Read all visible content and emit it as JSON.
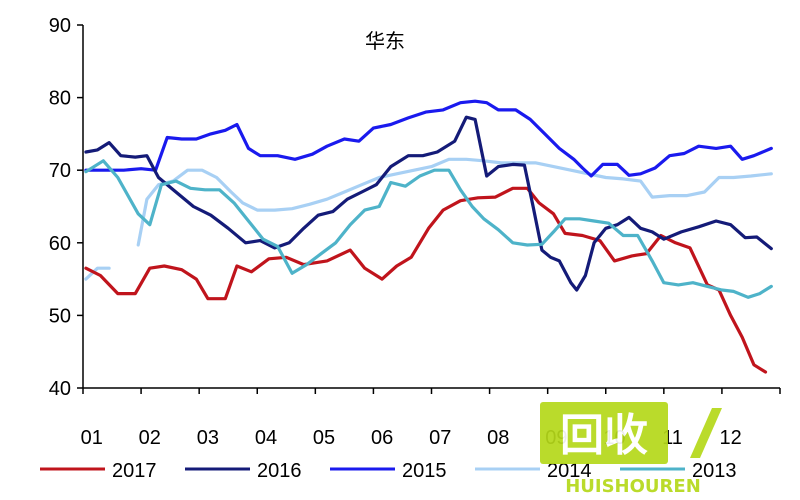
{
  "chart_data": {
    "type": "line",
    "title": "华东",
    "xlabel": "",
    "ylabel": "",
    "ylim": [
      40,
      90
    ],
    "xlim": [
      0,
      12
    ],
    "yticks": [
      40,
      50,
      60,
      70,
      80,
      90
    ],
    "categories": [
      "01",
      "02",
      "03",
      "04",
      "05",
      "06",
      "07",
      "08",
      "09",
      "10",
      "11",
      "12"
    ],
    "grid": false,
    "legend": "bottom",
    "series": [
      {
        "name": "2017",
        "color": "#c0141c",
        "points": [
          [
            0.05,
            56.5
          ],
          [
            0.3,
            55.5
          ],
          [
            0.6,
            53
          ],
          [
            0.9,
            53
          ],
          [
            1.15,
            56.5
          ],
          [
            1.4,
            56.8
          ],
          [
            1.7,
            56.3
          ],
          [
            1.95,
            55
          ],
          [
            2.15,
            52.3
          ],
          [
            2.45,
            52.3
          ],
          [
            2.65,
            56.8
          ],
          [
            2.9,
            56
          ],
          [
            3.2,
            57.8
          ],
          [
            3.5,
            58
          ],
          [
            3.8,
            57
          ],
          [
            4.2,
            57.5
          ],
          [
            4.6,
            59
          ],
          [
            4.85,
            56.5
          ],
          [
            5.15,
            55
          ],
          [
            5.4,
            56.8
          ],
          [
            5.65,
            58
          ],
          [
            5.95,
            62
          ],
          [
            6.2,
            64.5
          ],
          [
            6.5,
            65.8
          ],
          [
            6.8,
            66.2
          ],
          [
            7.1,
            66.3
          ],
          [
            7.4,
            67.5
          ],
          [
            7.65,
            67.5
          ],
          [
            7.85,
            65.5
          ],
          [
            8.1,
            64
          ],
          [
            8.3,
            61.3
          ],
          [
            8.6,
            61
          ],
          [
            8.9,
            60.3
          ],
          [
            9.15,
            57.5
          ],
          [
            9.45,
            58.2
          ],
          [
            9.7,
            58.5
          ],
          [
            9.95,
            61
          ],
          [
            10.2,
            60
          ],
          [
            10.45,
            59.3
          ],
          [
            10.75,
            54.2
          ],
          [
            10.95,
            53.5
          ],
          [
            11.15,
            50
          ],
          [
            11.35,
            47
          ],
          [
            11.55,
            43.2
          ],
          [
            11.75,
            42.2
          ]
        ]
      },
      {
        "name": "2016",
        "color": "#141b78",
        "points": [
          [
            0.05,
            72.5
          ],
          [
            0.25,
            72.8
          ],
          [
            0.45,
            73.8
          ],
          [
            0.65,
            72
          ],
          [
            0.9,
            71.8
          ],
          [
            1.1,
            72
          ],
          [
            1.3,
            69
          ],
          [
            1.6,
            67
          ],
          [
            1.9,
            65
          ],
          [
            2.2,
            63.8
          ],
          [
            2.5,
            62
          ],
          [
            2.8,
            60
          ],
          [
            3.05,
            60.3
          ],
          [
            3.3,
            59.3
          ],
          [
            3.55,
            60
          ],
          [
            3.8,
            62
          ],
          [
            4.05,
            63.8
          ],
          [
            4.3,
            64.3
          ],
          [
            4.55,
            66
          ],
          [
            4.8,
            67
          ],
          [
            5.05,
            68
          ],
          [
            5.3,
            70.5
          ],
          [
            5.6,
            72
          ],
          [
            5.85,
            72
          ],
          [
            6.1,
            72.5
          ],
          [
            6.4,
            74
          ],
          [
            6.6,
            77.3
          ],
          [
            6.75,
            77
          ],
          [
            6.95,
            69.2
          ],
          [
            7.15,
            70.5
          ],
          [
            7.4,
            70.8
          ],
          [
            7.6,
            70.7
          ],
          [
            7.75,
            65
          ],
          [
            7.9,
            59
          ],
          [
            8.05,
            58
          ],
          [
            8.2,
            57.5
          ],
          [
            8.4,
            54.5
          ],
          [
            8.5,
            53.5
          ],
          [
            8.65,
            55.5
          ],
          [
            8.8,
            60
          ],
          [
            9,
            62
          ],
          [
            9.2,
            62.5
          ],
          [
            9.4,
            63.5
          ],
          [
            9.6,
            62
          ],
          [
            9.8,
            61.5
          ],
          [
            10,
            60.5
          ],
          [
            10.3,
            61.5
          ],
          [
            10.6,
            62.2
          ],
          [
            10.9,
            63
          ],
          [
            11.15,
            62.5
          ],
          [
            11.4,
            60.7
          ],
          [
            11.6,
            60.8
          ],
          [
            11.85,
            59.2
          ]
        ]
      },
      {
        "name": "2015",
        "color": "#1a1aee",
        "points": [
          [
            0.05,
            70
          ],
          [
            0.35,
            70
          ],
          [
            0.7,
            70
          ],
          [
            1,
            70.2
          ],
          [
            1.25,
            70
          ],
          [
            1.45,
            74.5
          ],
          [
            1.7,
            74.3
          ],
          [
            1.95,
            74.3
          ],
          [
            2.2,
            75
          ],
          [
            2.45,
            75.5
          ],
          [
            2.65,
            76.3
          ],
          [
            2.85,
            73
          ],
          [
            3.05,
            72
          ],
          [
            3.35,
            72
          ],
          [
            3.65,
            71.5
          ],
          [
            3.95,
            72.2
          ],
          [
            4.2,
            73.3
          ],
          [
            4.5,
            74.3
          ],
          [
            4.75,
            74
          ],
          [
            5,
            75.8
          ],
          [
            5.3,
            76.3
          ],
          [
            5.6,
            77.2
          ],
          [
            5.9,
            78
          ],
          [
            6.2,
            78.3
          ],
          [
            6.5,
            79.3
          ],
          [
            6.75,
            79.5
          ],
          [
            6.95,
            79.3
          ],
          [
            7.15,
            78.3
          ],
          [
            7.45,
            78.3
          ],
          [
            7.7,
            77
          ],
          [
            7.95,
            75
          ],
          [
            8.2,
            73
          ],
          [
            8.45,
            71.5
          ],
          [
            8.6,
            70.3
          ],
          [
            8.75,
            69.2
          ],
          [
            8.95,
            70.8
          ],
          [
            9.2,
            70.8
          ],
          [
            9.4,
            69.3
          ],
          [
            9.6,
            69.5
          ],
          [
            9.85,
            70.3
          ],
          [
            10.1,
            72
          ],
          [
            10.35,
            72.3
          ],
          [
            10.6,
            73.3
          ],
          [
            10.9,
            73
          ],
          [
            11.15,
            73.3
          ],
          [
            11.35,
            71.5
          ],
          [
            11.55,
            72
          ],
          [
            11.85,
            73
          ]
        ]
      },
      {
        "name": "2014",
        "color": "#a8d0f4",
        "points": [
          [
            0.05,
            55
          ],
          [
            0.25,
            56.5
          ],
          [
            0.45,
            56.5
          ]
        ]
      },
      {
        "name": "2014",
        "color": "#a8d0f4",
        "points": [
          [
            0.95,
            59.7
          ],
          [
            1.1,
            66
          ],
          [
            1.3,
            68
          ],
          [
            1.55,
            68.5
          ],
          [
            1.8,
            70
          ],
          [
            2.05,
            70
          ],
          [
            2.3,
            69
          ],
          [
            2.55,
            67
          ],
          [
            2.75,
            65.5
          ],
          [
            3,
            64.5
          ],
          [
            3.3,
            64.5
          ],
          [
            3.6,
            64.7
          ],
          [
            3.9,
            65.3
          ],
          [
            4.2,
            66
          ],
          [
            4.5,
            67
          ],
          [
            4.8,
            68
          ],
          [
            5.1,
            69
          ],
          [
            5.4,
            69.5
          ],
          [
            5.7,
            70
          ],
          [
            6,
            70.5
          ],
          [
            6.3,
            71.5
          ],
          [
            6.6,
            71.5
          ],
          [
            6.9,
            71.3
          ],
          [
            7.2,
            71
          ],
          [
            7.5,
            71
          ],
          [
            7.8,
            71
          ],
          [
            8.1,
            70.5
          ],
          [
            8.4,
            70
          ],
          [
            8.7,
            69.5
          ],
          [
            9,
            69
          ],
          [
            9.3,
            68.8
          ],
          [
            9.6,
            68.5
          ],
          [
            9.8,
            66.3
          ],
          [
            10.1,
            66.5
          ],
          [
            10.4,
            66.5
          ],
          [
            10.7,
            67
          ],
          [
            10.95,
            69
          ],
          [
            11.2,
            69
          ],
          [
            11.5,
            69.2
          ],
          [
            11.85,
            69.5
          ]
        ]
      },
      {
        "name": "2013",
        "color": "#4eb3c9",
        "points": [
          [
            0.05,
            69.8
          ],
          [
            0.35,
            71.3
          ],
          [
            0.6,
            69
          ],
          [
            0.95,
            64
          ],
          [
            1.15,
            62.5
          ],
          [
            1.35,
            68
          ],
          [
            1.6,
            68.5
          ],
          [
            1.85,
            67.5
          ],
          [
            2.1,
            67.3
          ],
          [
            2.35,
            67.3
          ],
          [
            2.6,
            65.5
          ],
          [
            2.85,
            63
          ],
          [
            3.1,
            60.5
          ],
          [
            3.35,
            59.5
          ],
          [
            3.6,
            55.8
          ],
          [
            3.85,
            57
          ],
          [
            4.1,
            58.5
          ],
          [
            4.35,
            60
          ],
          [
            4.6,
            62.5
          ],
          [
            4.85,
            64.5
          ],
          [
            5.1,
            65
          ],
          [
            5.3,
            68.3
          ],
          [
            5.55,
            67.8
          ],
          [
            5.8,
            69.2
          ],
          [
            6.05,
            70
          ],
          [
            6.3,
            70
          ],
          [
            6.5,
            67.3
          ],
          [
            6.7,
            65
          ],
          [
            6.9,
            63.3
          ],
          [
            7.15,
            61.8
          ],
          [
            7.4,
            60
          ],
          [
            7.65,
            59.7
          ],
          [
            7.9,
            59.8
          ],
          [
            8.1,
            61.5
          ],
          [
            8.3,
            63.3
          ],
          [
            8.55,
            63.3
          ],
          [
            8.8,
            63
          ],
          [
            9.05,
            62.7
          ],
          [
            9.3,
            61
          ],
          [
            9.55,
            61
          ],
          [
            9.8,
            57.5
          ],
          [
            10,
            54.5
          ],
          [
            10.25,
            54.2
          ],
          [
            10.5,
            54.5
          ],
          [
            10.75,
            54
          ],
          [
            11,
            53.5
          ],
          [
            11.2,
            53.3
          ],
          [
            11.45,
            52.5
          ],
          [
            11.65,
            53
          ],
          [
            11.85,
            54
          ]
        ]
      }
    ]
  },
  "legend": [
    {
      "label": "2017",
      "color": "#c0141c"
    },
    {
      "label": "2016",
      "color": "#141b78"
    },
    {
      "label": "2015",
      "color": "#1a1aee"
    },
    {
      "label": "2014",
      "color": "#a8d0f4"
    },
    {
      "label": "2013",
      "color": "#4eb3c9"
    }
  ],
  "watermark": {
    "text": "回收",
    "subtext": "HUISHOUREN",
    "color": "#b5d81a"
  }
}
